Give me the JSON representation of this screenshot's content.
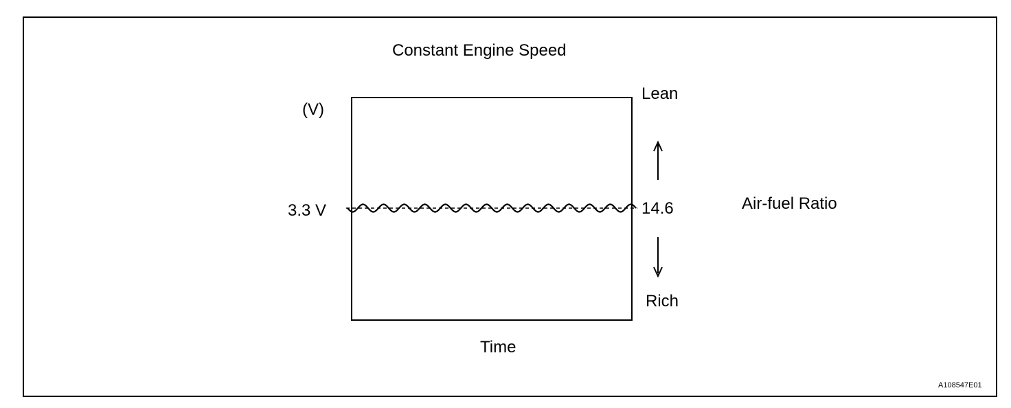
{
  "title": "Constant Engine Speed",
  "y_axis_unit": "(V)",
  "voltage_label": "3.3 V",
  "ratio_value": "14.6",
  "lean_label": "Lean",
  "rich_label": "Rich",
  "right_axis_label": "Air-fuel Ratio",
  "x_axis_label": "Time",
  "figure_id": "A108547E01",
  "line_color": "#000000"
}
